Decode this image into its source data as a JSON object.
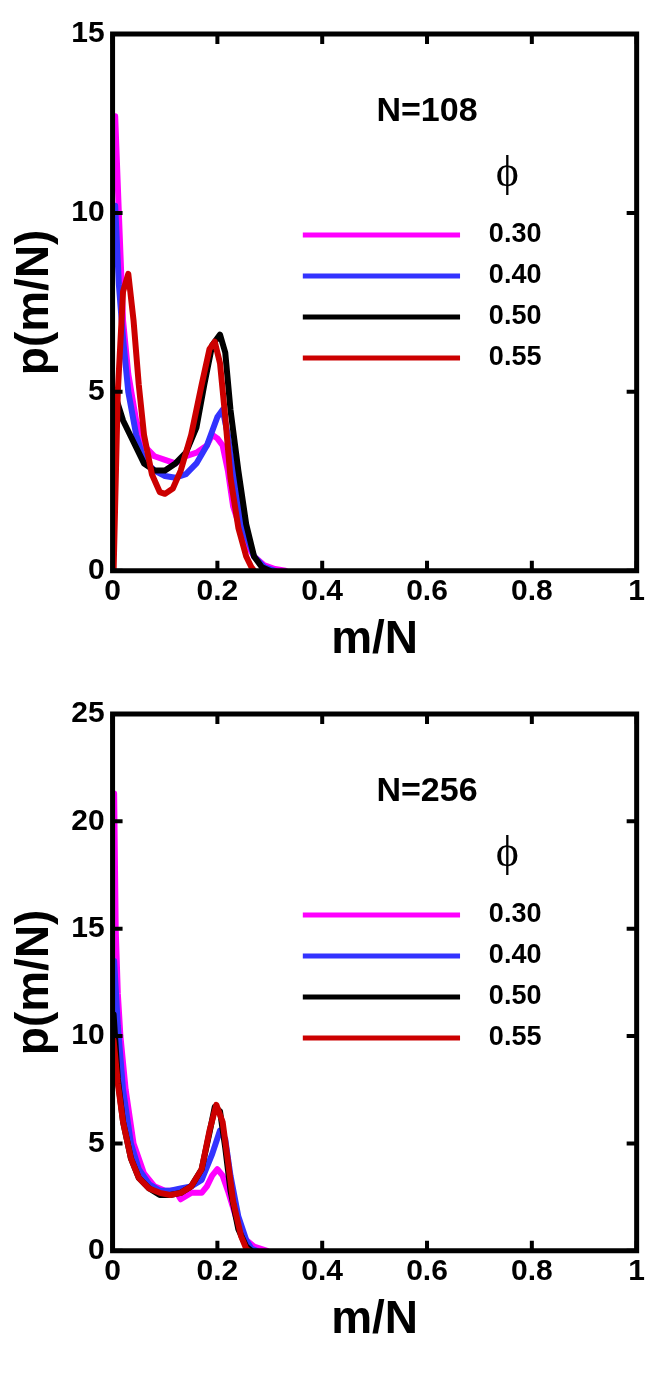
{
  "chart_data": [
    {
      "type": "line",
      "xlabel": "m/N",
      "ylabel": "p(m/N)",
      "xlim": [
        0,
        1
      ],
      "xticks": [
        0,
        0.2,
        0.4,
        0.6,
        0.8,
        1
      ],
      "ylim": [
        0,
        15
      ],
      "yticks": [
        0,
        5,
        10,
        15
      ],
      "grid": false,
      "legend": "top right",
      "legend_title": "ϕ",
      "annotations": [
        "N=108"
      ],
      "marker": "none",
      "line_style": "solid",
      "series": [
        {
          "name": "0.30",
          "color": "#ff00ff",
          "x": [
            0.005,
            0.012,
            0.02,
            0.03,
            0.045,
            0.06,
            0.08,
            0.1,
            0.12,
            0.14,
            0.16,
            0.18,
            0.19,
            0.2,
            0.21,
            0.22,
            0.23,
            0.25,
            0.27,
            0.29,
            0.31,
            0.33
          ],
          "values": [
            12.7,
            10,
            7,
            5.5,
            4.2,
            3.5,
            3.2,
            3.1,
            3.0,
            3.2,
            3.3,
            3.5,
            3.8,
            3.7,
            3.5,
            2.8,
            1.8,
            0.9,
            0.4,
            0.15,
            0.05,
            0
          ]
        },
        {
          "name": "0.40",
          "color": "#3333ff",
          "x": [
            0.005,
            0.012,
            0.02,
            0.03,
            0.045,
            0.06,
            0.08,
            0.1,
            0.12,
            0.14,
            0.16,
            0.18,
            0.2,
            0.21,
            0.22,
            0.235,
            0.25,
            0.27,
            0.29,
            0.31
          ],
          "values": [
            10.2,
            8,
            6.5,
            5,
            3.8,
            3.1,
            2.8,
            2.65,
            2.6,
            2.7,
            3.0,
            3.5,
            4.3,
            4.5,
            3.8,
            2.3,
            1.2,
            0.4,
            0.1,
            0
          ]
        },
        {
          "name": "0.50",
          "color": "#000000",
          "x": [
            0.005,
            0.02,
            0.04,
            0.06,
            0.08,
            0.1,
            0.12,
            0.14,
            0.16,
            0.175,
            0.19,
            0.205,
            0.215,
            0.225,
            0.24,
            0.255,
            0.27,
            0.285,
            0.3
          ],
          "values": [
            4.9,
            4.2,
            3.6,
            3.0,
            2.8,
            2.8,
            3.0,
            3.3,
            4.0,
            5.2,
            6.3,
            6.6,
            6.1,
            4.5,
            2.8,
            1.3,
            0.4,
            0.1,
            0
          ]
        },
        {
          "name": "0.55",
          "color": "#cc0000",
          "x": [
            0.002,
            0.01,
            0.02,
            0.03,
            0.04,
            0.05,
            0.06,
            0.075,
            0.09,
            0.1,
            0.115,
            0.13,
            0.15,
            0.17,
            0.185,
            0.195,
            0.205,
            0.215,
            0.225,
            0.24,
            0.255,
            0.265,
            0.27
          ],
          "values": [
            0,
            5,
            7.8,
            8.3,
            7,
            5.2,
            3.8,
            2.7,
            2.2,
            2.15,
            2.3,
            2.8,
            3.8,
            5.2,
            6.2,
            6.4,
            5.8,
            4.3,
            2.6,
            1.2,
            0.4,
            0.1,
            0
          ]
        }
      ]
    },
    {
      "type": "line",
      "xlabel": "m/N",
      "ylabel": "p(m/N)",
      "xlim": [
        0,
        1
      ],
      "xticks": [
        0,
        0.2,
        0.4,
        0.6,
        0.8,
        1
      ],
      "ylim": [
        0,
        25
      ],
      "yticks": [
        0,
        5,
        10,
        15,
        20,
        25
      ],
      "grid": false,
      "legend": "top right",
      "legend_title": "ϕ",
      "annotations": [
        "N=256"
      ],
      "marker": "none",
      "line_style": "solid",
      "series": [
        {
          "name": "0.30",
          "color": "#ff00ff",
          "x": [
            0.003,
            0.006,
            0.01,
            0.015,
            0.025,
            0.04,
            0.06,
            0.08,
            0.1,
            0.12,
            0.13,
            0.15,
            0.17,
            0.18,
            0.19,
            0.2,
            0.21,
            0.22,
            0.235,
            0.25,
            0.27,
            0.295
          ],
          "values": [
            21.3,
            15,
            12,
            10,
            7.5,
            5,
            3.6,
            3.0,
            2.8,
            2.8,
            2.4,
            2.7,
            2.7,
            3.0,
            3.5,
            3.8,
            3.5,
            2.8,
            1.6,
            0.6,
            0.2,
            0
          ]
        },
        {
          "name": "0.40",
          "color": "#3333ff",
          "x": [
            0.003,
            0.01,
            0.02,
            0.035,
            0.05,
            0.07,
            0.09,
            0.11,
            0.13,
            0.15,
            0.17,
            0.19,
            0.205,
            0.215,
            0.225,
            0.24,
            0.255,
            0.265,
            0.275
          ],
          "values": [
            13.5,
            10.5,
            7.5,
            5,
            3.8,
            3.1,
            2.8,
            2.8,
            2.9,
            3.0,
            3.3,
            4.5,
            5.6,
            5.2,
            3.5,
            1.6,
            0.5,
            0.1,
            0
          ]
        },
        {
          "name": "0.50",
          "color": "#000000",
          "x": [
            0.002,
            0.01,
            0.02,
            0.035,
            0.05,
            0.07,
            0.09,
            0.11,
            0.13,
            0.15,
            0.17,
            0.185,
            0.195,
            0.205,
            0.215,
            0.225,
            0.24,
            0.255,
            0.265
          ],
          "values": [
            11,
            8,
            6,
            4.3,
            3.4,
            2.9,
            2.6,
            2.6,
            2.7,
            3.0,
            3.8,
            5.5,
            6.7,
            6.5,
            4.8,
            2.8,
            1.0,
            0.2,
            0
          ]
        },
        {
          "name": "0.55",
          "color": "#cc0000",
          "x": [
            0.002,
            0.01,
            0.02,
            0.035,
            0.05,
            0.07,
            0.09,
            0.11,
            0.13,
            0.15,
            0.17,
            0.185,
            0.198,
            0.21,
            0.22,
            0.23,
            0.245,
            0.255,
            0.26
          ],
          "values": [
            9.8,
            7.8,
            6,
            4.3,
            3.4,
            2.9,
            2.7,
            2.6,
            2.7,
            3.0,
            3.8,
            5.6,
            6.8,
            6.0,
            4.2,
            2.3,
            0.7,
            0.1,
            0
          ]
        }
      ]
    }
  ]
}
